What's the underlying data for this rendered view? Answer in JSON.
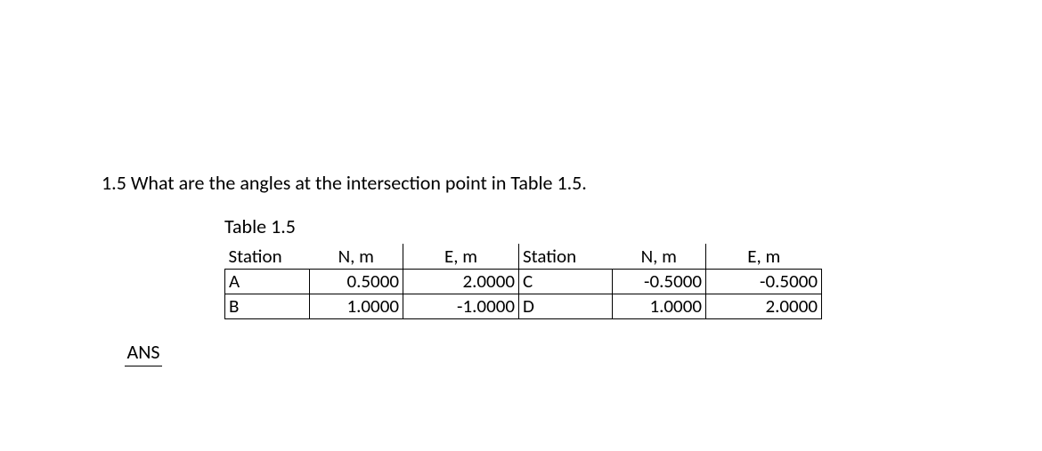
{
  "question": "1.5 What are the angles at the intersection point in Table 1.5.",
  "table": {
    "caption": "Table 1.5",
    "headers": [
      "Station",
      "N, m",
      "E, m",
      "Station",
      "N, m",
      "E, m"
    ],
    "rows": [
      {
        "s1": "A",
        "n1": "0.5000",
        "e1": "2.0000",
        "s2": "C",
        "n2": "-0.5000",
        "e2": "-0.5000"
      },
      {
        "s1": "B",
        "n1": "1.0000",
        "e1": "-1.0000",
        "s2": "D",
        "n2": "1.0000",
        "e2": "2.0000"
      }
    ]
  },
  "ans_label": "ANS",
  "colors": {
    "background": "#ffffff",
    "text": "#000000",
    "border": "#000000"
  },
  "fontsize": 21
}
